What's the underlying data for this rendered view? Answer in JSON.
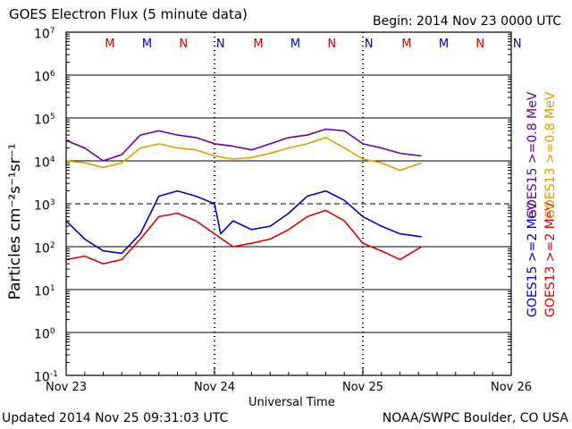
{
  "header": {
    "title": "GOES Electron Flux (5 minute data)",
    "begin": "Begin: 2014 Nov 23 0000 UTC"
  },
  "footer": {
    "updated": "Updated 2014 Nov 25 09:31:03 UTC",
    "source": "NOAA/SWPC Boulder, CO USA"
  },
  "chart_data": {
    "type": "line",
    "title": "GOES Electron Flux (5 minute data)",
    "xlabel": "Universal Time",
    "ylabel": "Particles cm⁻²s⁻¹sr⁻¹",
    "yscale": "log",
    "ylim": [
      0.1,
      10000000
    ],
    "xlim": [
      "2014-11-23 00:00",
      "2014-11-26 00:00"
    ],
    "x_ticks": [
      "Nov 23",
      "Nov 24",
      "Nov 25",
      "Nov 26"
    ],
    "y_ticks": [
      {
        "base": "10",
        "exp": "7"
      },
      {
        "base": "10",
        "exp": "6"
      },
      {
        "base": "10",
        "exp": "5"
      },
      {
        "base": "10",
        "exp": "4"
      },
      {
        "base": "10",
        "exp": "3"
      },
      {
        "base": "10",
        "exp": "2"
      },
      {
        "base": "10",
        "exp": "1"
      },
      {
        "base": "10",
        "exp": "0"
      },
      {
        "base": "10",
        "exp": "-1"
      }
    ],
    "grid": true,
    "alert_threshold": 1000,
    "local_noon_midnight_markers": [
      {
        "label": "M",
        "time": "2014-11-23 07:00",
        "color": "#cc0000"
      },
      {
        "label": "M",
        "time": "2014-11-23 13:00",
        "color": "#0000cc"
      },
      {
        "label": "N",
        "time": "2014-11-23 19:00",
        "color": "#cc0000"
      },
      {
        "label": "N",
        "time": "2014-11-24 01:00",
        "color": "#0000cc"
      },
      {
        "label": "M",
        "time": "2014-11-24 07:00",
        "color": "#cc0000"
      },
      {
        "label": "M",
        "time": "2014-11-24 13:00",
        "color": "#0000cc"
      },
      {
        "label": "N",
        "time": "2014-11-24 19:00",
        "color": "#cc0000"
      },
      {
        "label": "N",
        "time": "2014-11-25 01:00",
        "color": "#0000cc"
      },
      {
        "label": "M",
        "time": "2014-11-25 07:00",
        "color": "#cc0000"
      },
      {
        "label": "M",
        "time": "2014-11-25 13:00",
        "color": "#0000cc"
      },
      {
        "label": "N",
        "time": "2014-11-25 19:00",
        "color": "#cc0000"
      },
      {
        "label": "N",
        "time": "2014-11-26 01:00",
        "color": "#0000cc"
      }
    ],
    "legend": [
      {
        "label": "GOES15 >=2 MeV",
        "color": "#0000cc"
      },
      {
        "label": "GOES13 >=2 MeV",
        "color": "#dd0000"
      },
      {
        "label": "GOES15 >=0.8 MeV",
        "color": "#660099"
      },
      {
        "label": "GOES13 >=0.8 MeV",
        "color": "#e69900"
      }
    ],
    "legend_placement": "right",
    "series": [
      {
        "name": "GOES15 >=0.8 MeV",
        "color": "#660099",
        "x": [
          "2014-11-23 00:00",
          "2014-11-23 03:00",
          "2014-11-23 06:00",
          "2014-11-23 09:00",
          "2014-11-23 12:00",
          "2014-11-23 15:00",
          "2014-11-23 18:00",
          "2014-11-23 21:00",
          "2014-11-24 00:00",
          "2014-11-24 03:00",
          "2014-11-24 06:00",
          "2014-11-24 09:00",
          "2014-11-24 12:00",
          "2014-11-24 15:00",
          "2014-11-24 18:00",
          "2014-11-24 21:00",
          "2014-11-25 00:00",
          "2014-11-25 03:00",
          "2014-11-25 06:00",
          "2014-11-25 09:30"
        ],
        "y": [
          30000,
          20000,
          10000,
          14000,
          40000,
          50000,
          40000,
          35000,
          25000,
          22000,
          18000,
          25000,
          35000,
          40000,
          55000,
          50000,
          25000,
          20000,
          15000,
          13000
        ]
      },
      {
        "name": "GOES13 >=0.8 MeV",
        "color": "#e69900",
        "x": [
          "2014-11-23 00:00",
          "2014-11-23 03:00",
          "2014-11-23 06:00",
          "2014-11-23 09:00",
          "2014-11-23 12:00",
          "2014-11-23 15:00",
          "2014-11-23 18:00",
          "2014-11-23 21:00",
          "2014-11-24 00:00",
          "2014-11-24 03:00",
          "2014-11-24 06:00",
          "2014-11-24 09:00",
          "2014-11-24 12:00",
          "2014-11-24 15:00",
          "2014-11-24 18:00",
          "2014-11-24 21:00",
          "2014-11-25 00:00",
          "2014-11-25 03:00",
          "2014-11-25 06:00",
          "2014-11-25 09:30"
        ],
        "y": [
          10000,
          9000,
          7000,
          9000,
          20000,
          25000,
          20000,
          18000,
          13000,
          11000,
          12000,
          15000,
          20000,
          25000,
          35000,
          20000,
          11000,
          9000,
          6000,
          9000
        ]
      },
      {
        "name": "GOES15 >=2 MeV",
        "color": "#0000cc",
        "x": [
          "2014-11-23 00:00",
          "2014-11-23 03:00",
          "2014-11-23 06:00",
          "2014-11-23 09:00",
          "2014-11-23 12:00",
          "2014-11-23 15:00",
          "2014-11-23 18:00",
          "2014-11-23 21:00",
          "2014-11-24 00:00",
          "2014-11-24 01:00",
          "2014-11-24 03:00",
          "2014-11-24 06:00",
          "2014-11-24 09:00",
          "2014-11-24 12:00",
          "2014-11-24 15:00",
          "2014-11-24 18:00",
          "2014-11-24 21:00",
          "2014-11-25 00:00",
          "2014-11-25 03:00",
          "2014-11-25 06:00",
          "2014-11-25 09:30"
        ],
        "y": [
          400,
          150,
          80,
          70,
          200,
          1500,
          2000,
          1500,
          1000,
          200,
          400,
          250,
          300,
          600,
          1500,
          2000,
          1200,
          500,
          300,
          200,
          170
        ]
      },
      {
        "name": "GOES13 >=2 MeV",
        "color": "#dd0000",
        "x": [
          "2014-11-23 00:00",
          "2014-11-23 03:00",
          "2014-11-23 06:00",
          "2014-11-23 09:00",
          "2014-11-23 12:00",
          "2014-11-23 15:00",
          "2014-11-23 18:00",
          "2014-11-23 21:00",
          "2014-11-24 00:00",
          "2014-11-24 03:00",
          "2014-11-24 06:00",
          "2014-11-24 09:00",
          "2014-11-24 12:00",
          "2014-11-24 15:00",
          "2014-11-24 18:00",
          "2014-11-24 21:00",
          "2014-11-25 00:00",
          "2014-11-25 03:00",
          "2014-11-25 06:00",
          "2014-11-25 09:30"
        ],
        "y": [
          50,
          60,
          40,
          50,
          150,
          500,
          600,
          400,
          200,
          100,
          120,
          150,
          250,
          500,
          700,
          400,
          120,
          80,
          50,
          100
        ]
      }
    ]
  }
}
